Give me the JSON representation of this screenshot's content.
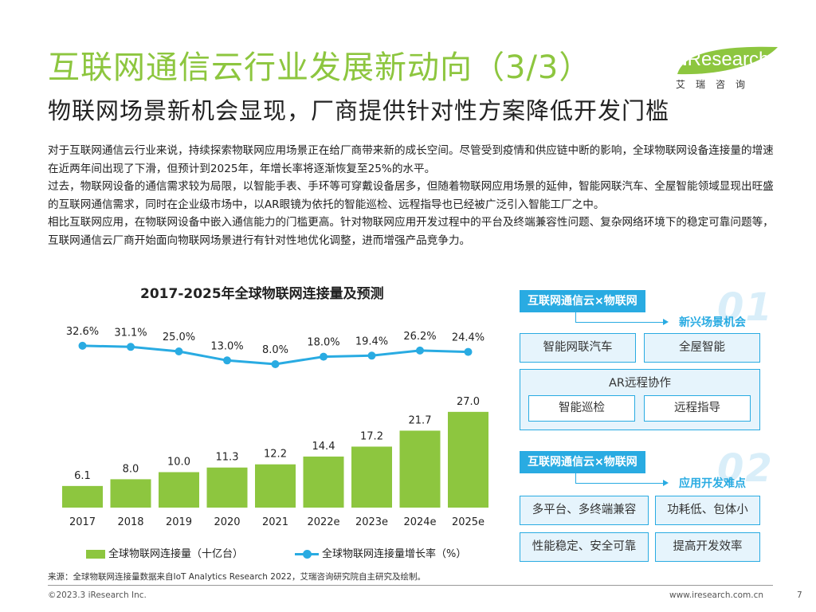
{
  "header": {
    "title": "互联网通信云行业发展新动向（3/3）",
    "subtitle": "物联网场景新机会显现，厂商提供针对性方案降低开发门槛",
    "logo_text": "Research",
    "logo_i": "i",
    "logo_cn": "艾瑞咨询",
    "brand_color": "#8dc63f"
  },
  "body": {
    "paragraphs": [
      "对于互联网通信云行业来说，持续探索物联网应用场景正在给厂商带来新的成长空间。尽管受到疫情和供应链中断的影响，全球物联网设备连接量的增速在近两年间出现了下滑，但预计到2025年，年增长率将逐渐恢复至25%的水平。",
      "过去，物联网设备的通信需求较为局限，以智能手表、手环等可穿戴设备居多，但随着物联网应用场景的延伸，智能网联汽车、全屋智能领域显现出旺盛的互联网通信需求，同时在企业级市场中，以AR眼镜为依托的智能巡检、远程指导也已经被广泛引入智能工厂之中。",
      "相比互联网应用，在物联网设备中嵌入通信能力的门槛更高。针对物联网应用开发过程中的平台及终端兼容性问题、复杂网络环境下的稳定可靠问题等，互联网通信云厂商开始面向物联网场景进行有针对性地优化调整，进而增强产品竞争力。"
    ]
  },
  "chart_data": {
    "type": "bar",
    "title": "2017-2025年全球物联网连接量及预测",
    "categories": [
      "2017",
      "2018",
      "2019",
      "2020",
      "2021",
      "2022e",
      "2023e",
      "2024e",
      "2025e"
    ],
    "series": [
      {
        "name": "全球物联网连接量（十亿台）",
        "type": "bar",
        "values": [
          6.1,
          8.0,
          10.0,
          11.3,
          12.2,
          14.4,
          17.2,
          21.7,
          27.0
        ],
        "labels": [
          "6.1",
          "8.0",
          "10.0",
          "11.3",
          "12.2",
          "14.4",
          "17.2",
          "21.7",
          "27.0"
        ],
        "color": "#8dc63f"
      },
      {
        "name": "全球物联网连接量增长率（%）",
        "type": "line",
        "values": [
          32.6,
          31.1,
          25.0,
          13.0,
          8.0,
          18.0,
          19.4,
          26.2,
          24.4
        ],
        "labels": [
          "32.6%",
          "31.1%",
          "25.0%",
          "13.0%",
          "8.0%",
          "18.0%",
          "19.4%",
          "26.2%",
          "24.4%"
        ],
        "color": "#29abe2"
      }
    ],
    "legend_position": "bottom",
    "grid": false
  },
  "panel": {
    "section1": {
      "tag": "互联网通信云×物联网",
      "number": "01",
      "label": "新兴场景机会",
      "boxes": [
        "智能网联汽车",
        "全屋智能"
      ],
      "group_title": "AR远程协作",
      "group_boxes": [
        "智能巡检",
        "远程指导"
      ]
    },
    "section2": {
      "tag": "互联网通信云×物联网",
      "number": "02",
      "label": "应用开发难点",
      "boxes": [
        "多平台、多终端兼容",
        "功耗低、包体小",
        "性能稳定、安全可靠",
        "提高开发效率"
      ]
    },
    "accent_color": "#29abe2"
  },
  "footer": {
    "source": "来源：全球物联网连接量数据来自IoT Analytics Research 2022，艾瑞咨询研究院自主研究及绘制。",
    "copyright": "©2023.3 iResearch Inc.",
    "website": "www.iresearch.com.cn",
    "page": "7"
  }
}
